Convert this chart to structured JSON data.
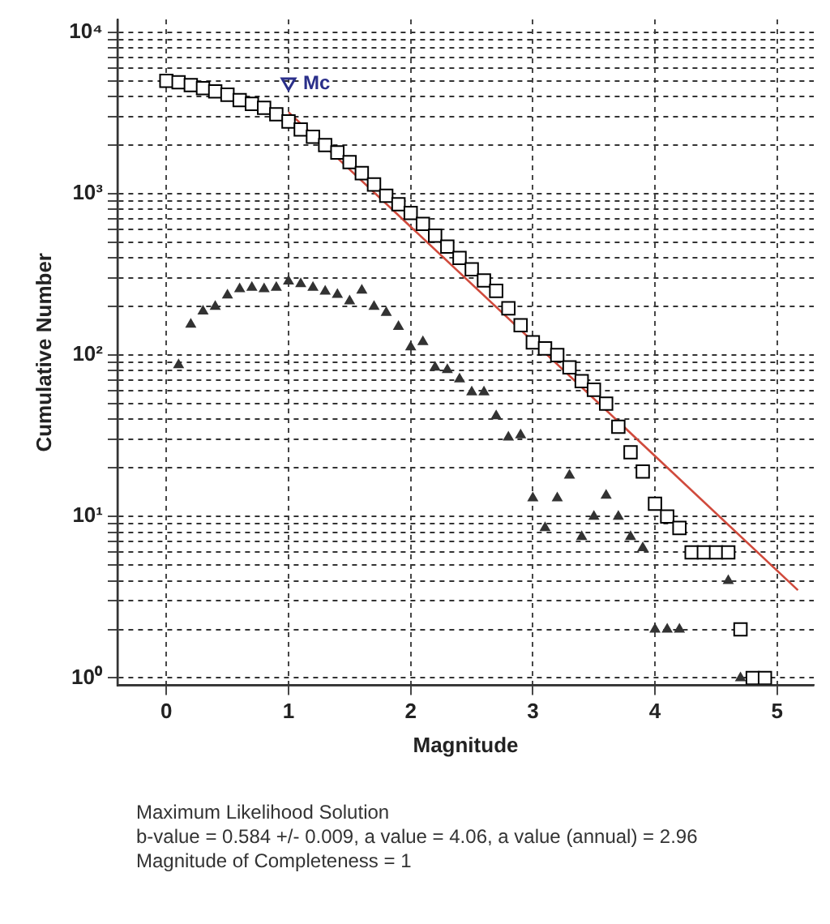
{
  "chart_data": {
    "type": "scatter",
    "xlabel": "Magnitude",
    "ylabel": "Cumulative Number",
    "log": "y",
    "grid": true,
    "legend": false,
    "xlim": [
      -0.4,
      5.3
    ],
    "xticks": [
      0,
      1,
      2,
      3,
      4,
      5
    ],
    "ylim": [
      0.9,
      12000
    ],
    "yticks": [
      {
        "value": 1,
        "label": "10⁰"
      },
      {
        "value": 2,
        "label": null
      },
      {
        "value": 3,
        "label": null
      },
      {
        "value": 4,
        "label": null
      },
      {
        "value": 5,
        "label": null
      },
      {
        "value": 6,
        "label": null
      },
      {
        "value": 7,
        "label": null
      },
      {
        "value": 8,
        "label": null
      },
      {
        "value": 9,
        "label": null
      },
      {
        "value": 10,
        "label": "10¹"
      },
      {
        "value": 20,
        "label": null
      },
      {
        "value": 30,
        "label": null
      },
      {
        "value": 40,
        "label": null
      },
      {
        "value": 50,
        "label": null
      },
      {
        "value": 60,
        "label": null
      },
      {
        "value": 70,
        "label": null
      },
      {
        "value": 80,
        "label": null
      },
      {
        "value": 90,
        "label": null
      },
      {
        "value": 100,
        "label": "10²"
      },
      {
        "value": 200,
        "label": null
      },
      {
        "value": 300,
        "label": null
      },
      {
        "value": 400,
        "label": null
      },
      {
        "value": 500,
        "label": null
      },
      {
        "value": 600,
        "label": null
      },
      {
        "value": 700,
        "label": null
      },
      {
        "value": 800,
        "label": null
      },
      {
        "value": 900,
        "label": null
      },
      {
        "value": 1000,
        "label": "10³"
      },
      {
        "value": 2000,
        "label": null
      },
      {
        "value": 3000,
        "label": null
      },
      {
        "value": 4000,
        "label": null
      },
      {
        "value": 5000,
        "label": null
      },
      {
        "value": 6000,
        "label": null
      },
      {
        "value": 7000,
        "label": null
      },
      {
        "value": 8000,
        "label": null
      },
      {
        "value": 9000,
        "label": null
      },
      {
        "value": 10000,
        "label": "10⁴"
      }
    ],
    "series": [
      {
        "marker": "square",
        "color": "#000000",
        "x": [
          0,
          0.1,
          0.2,
          0.3,
          0.4,
          0.5,
          0.6,
          0.7,
          0.8,
          0.9,
          1.0,
          1.1,
          1.2,
          1.3,
          1.4,
          1.5,
          1.6,
          1.7,
          1.8,
          1.9,
          2.0,
          2.1,
          2.2,
          2.3,
          2.4,
          2.5,
          2.6,
          2.7,
          2.8,
          2.9,
          3.0,
          3.1,
          3.2,
          3.3,
          3.4,
          3.5,
          3.6,
          3.7,
          3.8,
          3.9,
          4.0,
          4.1,
          4.2,
          4.3,
          4.4,
          4.5,
          4.6,
          4.7,
          4.8,
          4.9
        ],
        "values": [
          5000,
          4900,
          4700,
          4500,
          4300,
          4100,
          3800,
          3600,
          3400,
          3100,
          2800,
          2500,
          2250,
          2000,
          1800,
          1570,
          1340,
          1140,
          970,
          860,
          760,
          650,
          550,
          470,
          400,
          340,
          290,
          250,
          195,
          153,
          120,
          110,
          100,
          84,
          69,
          61,
          50,
          36,
          25,
          19,
          12,
          10,
          8.5,
          6,
          6,
          6,
          6,
          2,
          1,
          1
        ]
      },
      {
        "marker": "triangle",
        "color": "#333333",
        "x": [
          0.1,
          0.2,
          0.3,
          0.4,
          0.5,
          0.6,
          0.7,
          0.8,
          0.9,
          1.0,
          1.1,
          1.2,
          1.3,
          1.4,
          1.5,
          1.6,
          1.7,
          1.8,
          1.9,
          2.0,
          2.1,
          2.2,
          2.3,
          2.4,
          2.5,
          2.6,
          2.7,
          2.8,
          2.9,
          3.0,
          3.1,
          3.2,
          3.3,
          3.4,
          3.5,
          3.6,
          3.7,
          3.8,
          3.9,
          4.0,
          4.1,
          4.2,
          4.6,
          4.7
        ],
        "values": [
          87,
          155,
          187,
          200,
          235,
          257,
          262,
          257,
          262,
          287,
          276,
          262,
          248,
          237,
          216,
          252,
          200,
          183,
          150,
          112,
          121,
          84,
          81,
          71,
          59,
          59,
          42,
          31,
          32,
          13,
          8.5,
          13,
          18,
          7.5,
          10,
          13.5,
          10,
          7.5,
          6.4,
          2,
          2,
          2,
          4,
          1
        ]
      },
      {
        "type": "line",
        "marker": "none",
        "line_style": "solid",
        "color": "#d04a3c",
        "x": [
          1.0,
          5.17
        ],
        "values": [
          3200,
          3.5
        ]
      }
    ],
    "annotations": [
      {
        "text": "Mc",
        "x": 1,
        "y": 4700
      },
      "Maximum Likelihood Solution",
      "b-value = 0.584 +/- 0.009,  a value = 4.06,  a value (annual) = 2.96",
      "Magnitude of Completeness = 1"
    ]
  }
}
